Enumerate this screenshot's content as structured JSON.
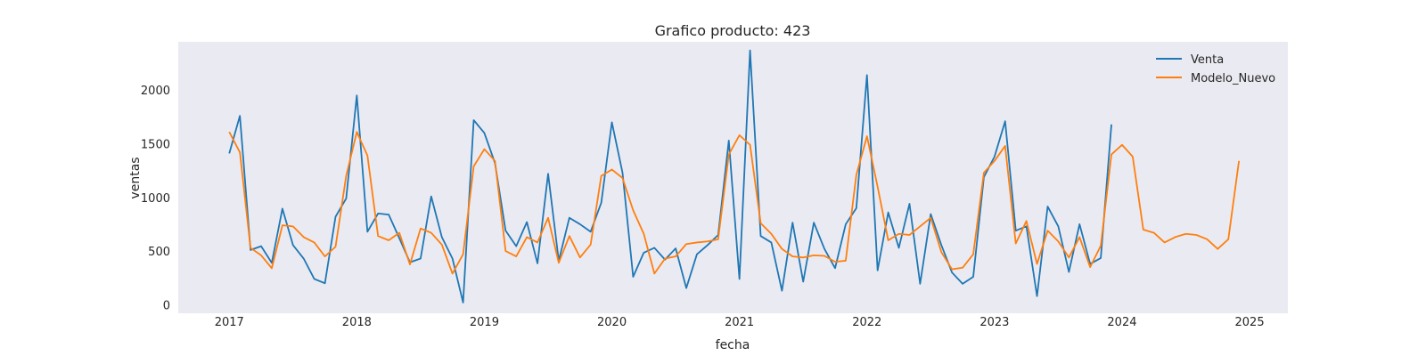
{
  "chart_data": {
    "type": "line",
    "title": "Grafico producto: 423",
    "xlabel": "fecha",
    "ylabel": "ventas",
    "xlim": [
      2016.6,
      2025.3
    ],
    "ylim": [
      -80,
      2450
    ],
    "x_ticks": [
      "2017",
      "2018",
      "2019",
      "2020",
      "2021",
      "2022",
      "2023",
      "2024",
      "2025"
    ],
    "y_ticks": [
      "0",
      "500",
      "1000",
      "1500",
      "2000"
    ],
    "grid": false,
    "legend_position": "top-right",
    "series": [
      {
        "name": "Venta",
        "color": "#1f77b4",
        "start": "2017-01",
        "values": [
          1410,
          1760,
          510,
          545,
          390,
          895,
          555,
          430,
          240,
          200,
          820,
          990,
          1950,
          680,
          850,
          840,
          620,
          395,
          430,
          1010,
          630,
          430,
          20,
          1720,
          1600,
          1320,
          690,
          545,
          770,
          385,
          1220,
          410,
          810,
          750,
          680,
          950,
          1700,
          1230,
          260,
          485,
          530,
          420,
          525,
          155,
          470,
          555,
          650,
          1530,
          240,
          2370,
          640,
          580,
          130,
          765,
          215,
          765,
          520,
          340,
          750,
          900,
          2140,
          320,
          860,
          530,
          940,
          195,
          845,
          555,
          300,
          195,
          260,
          1190,
          1380,
          1710,
          690,
          730,
          80,
          915,
          730,
          305,
          750,
          380,
          435,
          1680
        ]
      },
      {
        "name": "Modelo_Nuevo",
        "color": "#ff7f0e",
        "start": "2017-01",
        "values": [
          1610,
          1420,
          530,
          460,
          340,
          740,
          730,
          630,
          580,
          450,
          540,
          1200,
          1610,
          1390,
          640,
          600,
          670,
          375,
          710,
          670,
          560,
          290,
          470,
          1290,
          1450,
          1340,
          500,
          450,
          630,
          580,
          810,
          390,
          640,
          440,
          560,
          1200,
          1260,
          1180,
          880,
          660,
          290,
          430,
          450,
          565,
          580,
          590,
          610,
          1400,
          1580,
          1490,
          760,
          660,
          520,
          450,
          440,
          460,
          455,
          400,
          410,
          1210,
          1570,
          1100,
          600,
          660,
          650,
          730,
          810,
          490,
          330,
          345,
          470,
          1230,
          1340,
          1480,
          570,
          780,
          380,
          690,
          590,
          440,
          630,
          350,
          550,
          1400,
          1490,
          1380,
          700,
          670,
          580,
          630,
          660,
          650,
          610,
          520,
          610,
          1340
        ]
      }
    ]
  }
}
